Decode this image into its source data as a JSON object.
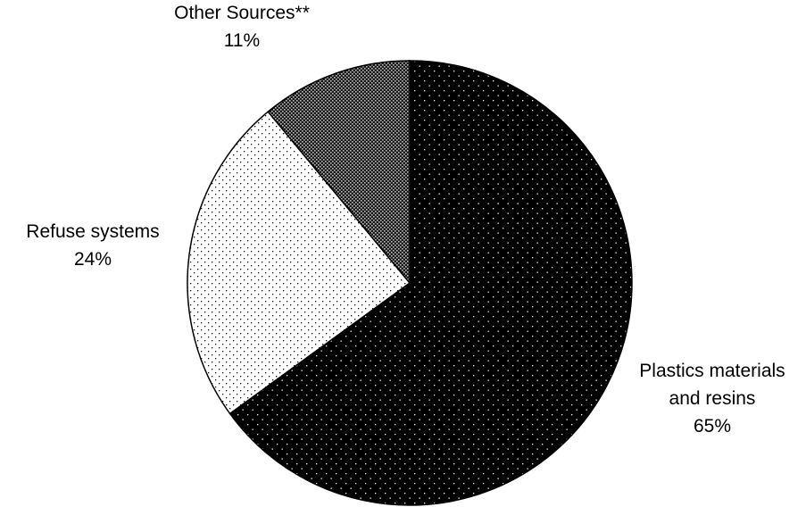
{
  "chart_data": {
    "type": "pie",
    "title": "",
    "start_angle_deg": 0,
    "direction": "clockwise",
    "slices": [
      {
        "label_lines": [
          "Plastics materials",
          "and resins"
        ],
        "percent_label": "65%",
        "value": 65,
        "pattern": "dots-on-black"
      },
      {
        "label_lines": [
          "Refuse systems"
        ],
        "percent_label": "24%",
        "value": 24,
        "pattern": "dots-on-white"
      },
      {
        "label_lines": [
          "Other Sources**"
        ],
        "percent_label": "11%",
        "value": 11,
        "pattern": "dense-checker"
      }
    ]
  }
}
